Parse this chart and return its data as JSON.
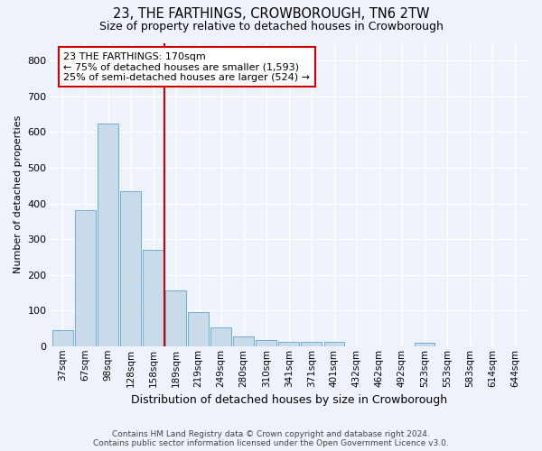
{
  "title": "23, THE FARTHINGS, CROWBOROUGH, TN6 2TW",
  "subtitle": "Size of property relative to detached houses in Crowborough",
  "xlabel": "Distribution of detached houses by size in Crowborough",
  "ylabel": "Number of detached properties",
  "categories": [
    "37sqm",
    "67sqm",
    "98sqm",
    "128sqm",
    "158sqm",
    "189sqm",
    "219sqm",
    "249sqm",
    "280sqm",
    "310sqm",
    "341sqm",
    "371sqm",
    "401sqm",
    "432sqm",
    "462sqm",
    "492sqm",
    "523sqm",
    "553sqm",
    "583sqm",
    "614sqm",
    "644sqm"
  ],
  "values": [
    45,
    380,
    625,
    435,
    270,
    155,
    95,
    52,
    28,
    18,
    12,
    12,
    12,
    0,
    0,
    0,
    10,
    0,
    0,
    0,
    0
  ],
  "bar_color": "#c9daea",
  "bar_edge_color": "#6aaed6",
  "vline_x": 4.5,
  "vline_color": "#cc0000",
  "annotation_text": "23 THE FARTHINGS: 170sqm\n← 75% of detached houses are smaller (1,593)\n25% of semi-detached houses are larger (524) →",
  "annotation_box_color": "#ffffff",
  "annotation_box_edge_color": "#cc0000",
  "ylim": [
    0,
    850
  ],
  "yticks": [
    0,
    100,
    200,
    300,
    400,
    500,
    600,
    700,
    800
  ],
  "footer_line1": "Contains HM Land Registry data © Crown copyright and database right 2024.",
  "footer_line2": "Contains public sector information licensed under the Open Government Licence v3.0.",
  "bg_color": "#eef2fa",
  "fig_color": "#eef2fa",
  "grid_color": "#ffffff",
  "title_fontsize": 10.5,
  "subtitle_fontsize": 9,
  "xlabel_fontsize": 9,
  "ylabel_fontsize": 8,
  "tick_fontsize": 7.5,
  "annotation_fontsize": 8,
  "footer_fontsize": 6.5
}
